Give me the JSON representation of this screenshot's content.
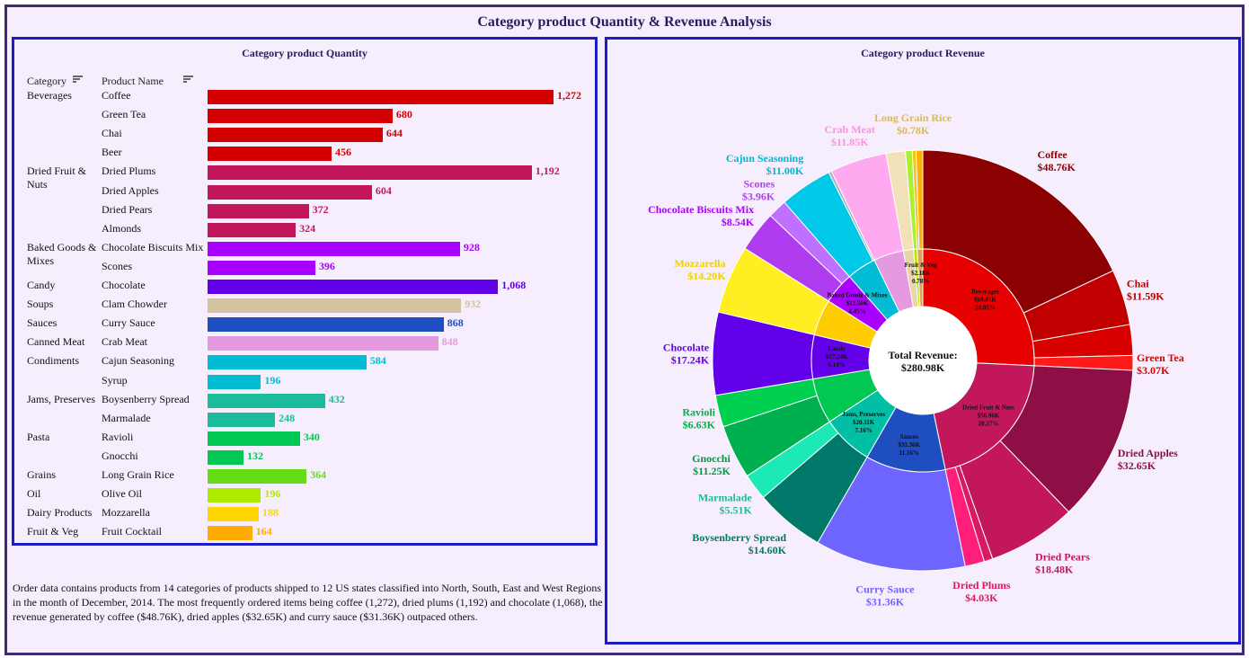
{
  "title": "Category product Quantity & Revenue Analysis",
  "quantity_panel": {
    "title": "Category product Quantity",
    "col_category": "Category",
    "col_product": "Product Name",
    "sort_icon": "sort-lines-icon"
  },
  "revenue_panel": {
    "title": "Category product Revenue",
    "center_label": "Total Revenue:",
    "center_value": "$280.98K"
  },
  "summary": "Order data contains products from 14 categories of products shipped to 12 US states classified into North, South, East and West Regions in the month of December, 2014. The most frequently ordered items being coffee (1,272), dried plums (1,192) and chocolate (1,068), the revenue generated by coffee ($48.76K), dried apples ($32.65K) and curry sauce ($31.36K) outpaced others.",
  "chart_data": [
    {
      "type": "bar",
      "orientation": "horizontal",
      "title": "Category product Quantity",
      "rows": [
        {
          "category": "Beverages",
          "product": "Coffee",
          "value": 1272,
          "label": "1,272",
          "color": "#d40000"
        },
        {
          "category": "",
          "product": "Green Tea",
          "value": 680,
          "label": "680",
          "color": "#d40000"
        },
        {
          "category": "",
          "product": "Chai",
          "value": 644,
          "label": "644",
          "color": "#d40000"
        },
        {
          "category": "",
          "product": "Beer",
          "value": 456,
          "label": "456",
          "color": "#d40000"
        },
        {
          "category": "Dried Fruit & Nuts",
          "product": "Dried Plums",
          "value": 1192,
          "label": "1,192",
          "color": "#c2185b"
        },
        {
          "category": "",
          "product": "Dried Apples",
          "value": 604,
          "label": "604",
          "color": "#c2185b"
        },
        {
          "category": "",
          "product": "Dried Pears",
          "value": 372,
          "label": "372",
          "color": "#c2185b"
        },
        {
          "category": "",
          "product": "Almonds",
          "value": 324,
          "label": "324",
          "color": "#c2185b"
        },
        {
          "category": "Baked Goods & Mixes",
          "product": "Chocolate Biscuits Mix",
          "value": 928,
          "label": "928",
          "color": "#aa00ff"
        },
        {
          "category": "",
          "product": "Scones",
          "value": 396,
          "label": "396",
          "color": "#aa00ff"
        },
        {
          "category": "Candy",
          "product": "Chocolate",
          "value": 1068,
          "label": "1,068",
          "color": "#6200ea"
        },
        {
          "category": "Soups",
          "product": "Clam Chowder",
          "value": 932,
          "label": "932",
          "color": "#d2c3a0"
        },
        {
          "category": "Sauces",
          "product": "Curry Sauce",
          "value": 868,
          "label": "868",
          "color": "#1e4ec0"
        },
        {
          "category": "Canned Meat",
          "product": "Crab Meat",
          "value": 848,
          "label": "848",
          "color": "#e59ae0"
        },
        {
          "category": "Condiments",
          "product": "Cajun Seasoning",
          "value": 584,
          "label": "584",
          "color": "#00bcd4"
        },
        {
          "category": "",
          "product": "Syrup",
          "value": 196,
          "label": "196",
          "color": "#00bcd4"
        },
        {
          "category": "Jams, Preserves",
          "product": "Boysenberry Spread",
          "value": 432,
          "label": "432",
          "color": "#1abc9c"
        },
        {
          "category": "",
          "product": "Marmalade",
          "value": 248,
          "label": "248",
          "color": "#1abc9c"
        },
        {
          "category": "Pasta",
          "product": "Ravioli",
          "value": 340,
          "label": "340",
          "color": "#00c853"
        },
        {
          "category": "",
          "product": "Gnocchi",
          "value": 132,
          "label": "132",
          "color": "#00c853"
        },
        {
          "category": "Grains",
          "product": "Long Grain Rice",
          "value": 364,
          "label": "364",
          "color": "#64dd17"
        },
        {
          "category": "Oil",
          "product": "Olive Oil",
          "value": 196,
          "label": "196",
          "color": "#aeea00"
        },
        {
          "category": "Dairy Products",
          "product": "Mozzarella",
          "value": 188,
          "label": "188",
          "color": "#ffd600"
        },
        {
          "category": "Fruit & Veg",
          "product": "Fruit Cocktail",
          "value": 164,
          "label": "164",
          "color": "#ffab00"
        }
      ]
    },
    {
      "type": "pie",
      "variant": "sunburst",
      "title": "Category product Revenue",
      "inner": [
        {
          "name": "Beverages",
          "value": 69.81,
          "label_lines": [
            "Beverages",
            "$69.81K",
            "24.85%"
          ],
          "color": "#e60000"
        },
        {
          "name": "Dried Fruit & Nuts",
          "value": 56.96,
          "label_lines": [
            "Dried Fruit & Nuts",
            "$56.96K",
            "20.27%"
          ],
          "color": "#c2185b"
        },
        {
          "name": "Sauces",
          "value": 31.36,
          "label_lines": [
            "Sauces",
            "$31.36K",
            "11.16%"
          ],
          "color": "#1e4ec0"
        },
        {
          "name": "Jams, Preserves",
          "value": 20.11,
          "label_lines": [
            "Jams, Preserves",
            "$20.11K",
            "7.16%"
          ],
          "color": "#00bfa5"
        },
        {
          "name": "Pasta",
          "value": 17.88,
          "label_lines": [],
          "color": "#00c853"
        },
        {
          "name": "Candy",
          "value": 17.24,
          "label_lines": [
            "Candy",
            "$17.24K",
            "6.14%"
          ],
          "color": "#6200ea"
        },
        {
          "name": "Dairy Products",
          "value": 14.2,
          "label_lines": [],
          "color": "#ffcc00"
        },
        {
          "name": "Baked Goods & Mixes",
          "value": 12.5,
          "label_lines": [
            "Baked Goods & Mixes",
            "$12.50K",
            "4.45%"
          ],
          "color": "#aa00ff"
        },
        {
          "name": "Condiments",
          "value": 11.6,
          "label_lines": [],
          "color": "#00bcd4"
        },
        {
          "name": "Canned Meat",
          "value": 11.85,
          "label_lines": [],
          "color": "#e59ae0"
        },
        {
          "name": "Grains",
          "value": 4.0,
          "label_lines": [],
          "color": "#e8d6a6"
        },
        {
          "name": "Oil",
          "value": 1.4,
          "label_lines": [],
          "color": "#aeea00"
        },
        {
          "name": "Fruit & Veg",
          "value": 2.18,
          "label_lines": [
            "Fruit & Veg",
            "$2.18K",
            "0.78%"
          ],
          "color": "#e0a060"
        }
      ],
      "outer": [
        {
          "product": "Coffee",
          "value": 48.76,
          "label": "$48.76K",
          "color": "#8b0000",
          "label_color": "#8b0000"
        },
        {
          "product": "Chai",
          "value": 11.59,
          "label": "$11.59K",
          "color": "#c00000",
          "label_color": "#b00000"
        },
        {
          "product": "",
          "value": 6.39,
          "label": "",
          "color": "#d80000",
          "label_color": ""
        },
        {
          "product": "Green Tea",
          "value": 3.07,
          "label": "$3.07K",
          "color": "#ff1a1a",
          "label_color": "#e00000"
        },
        {
          "product": "Dried Apples",
          "value": 32.65,
          "label": "$32.65K",
          "color": "#8e0f45",
          "label_color": "#8e0f45"
        },
        {
          "product": "Dried Pears",
          "value": 18.48,
          "label": "$18.48K",
          "color": "#c2185b",
          "label_color": "#c2185b"
        },
        {
          "product": "",
          "value": 1.8,
          "label": "",
          "color": "#d81b60",
          "label_color": ""
        },
        {
          "product": "Dried Plums",
          "value": 4.03,
          "label": "$4.03K",
          "color": "#ff1f7a",
          "label_color": "#d81b60"
        },
        {
          "product": "Curry Sauce",
          "value": 31.36,
          "label": "$31.36K",
          "color": "#6e64ff",
          "label_color": "#6e64ff"
        },
        {
          "product": "Boysenberry Spread",
          "value": 14.6,
          "label": "$14.60K",
          "color": "#00796b",
          "label_color": "#00796b"
        },
        {
          "product": "Marmalade",
          "value": 5.51,
          "label": "$5.51K",
          "color": "#1de9b6",
          "label_color": "#1abc9c"
        },
        {
          "product": "Gnocchi",
          "value": 11.25,
          "label": "$11.25K",
          "color": "#00b050",
          "label_color": "#009a40"
        },
        {
          "product": "Ravioli",
          "value": 6.63,
          "label": "$6.63K",
          "color": "#00d050",
          "label_color": "#00b040"
        },
        {
          "product": "Chocolate",
          "value": 17.24,
          "label": "$17.24K",
          "color": "#6200ea",
          "label_color": "#6200ea"
        },
        {
          "product": "Mozzarella",
          "value": 14.2,
          "label": "$14.20K",
          "color": "#ffee22",
          "label_color": "#f0d000"
        },
        {
          "product": "Chocolate Biscuits Mix",
          "value": 8.54,
          "label": "$8.54K",
          "color": "#b03cf0",
          "label_color": "#aa00ff"
        },
        {
          "product": "Scones",
          "value": 3.96,
          "label": "$3.96K",
          "color": "#c070ff",
          "label_color": "#b040f0"
        },
        {
          "product": "Cajun Seasoning",
          "value": 11.0,
          "label": "$11.00K",
          "color": "#00c8e8",
          "label_color": "#00b8d4"
        },
        {
          "product": "",
          "value": 0.6,
          "label": "",
          "color": "#aab0bb",
          "label_color": ""
        },
        {
          "product": "Crab Meat",
          "value": 11.85,
          "label": "$11.85K",
          "color": "#ffaaf0",
          "label_color": "#ff90e0"
        },
        {
          "product": "",
          "value": 4.0,
          "label": "",
          "color": "#f2e0b8",
          "label_color": ""
        },
        {
          "product": "",
          "value": 1.4,
          "label": "",
          "color": "#a8f030",
          "label_color": ""
        },
        {
          "product": "Long Grain Rice",
          "value": 0.78,
          "label": "$0.78K",
          "color": "#f8c020",
          "label_color": "#d8b860"
        },
        {
          "product": "",
          "value": 1.4,
          "label": "",
          "color": "#ffb000",
          "label_color": ""
        }
      ]
    }
  ]
}
